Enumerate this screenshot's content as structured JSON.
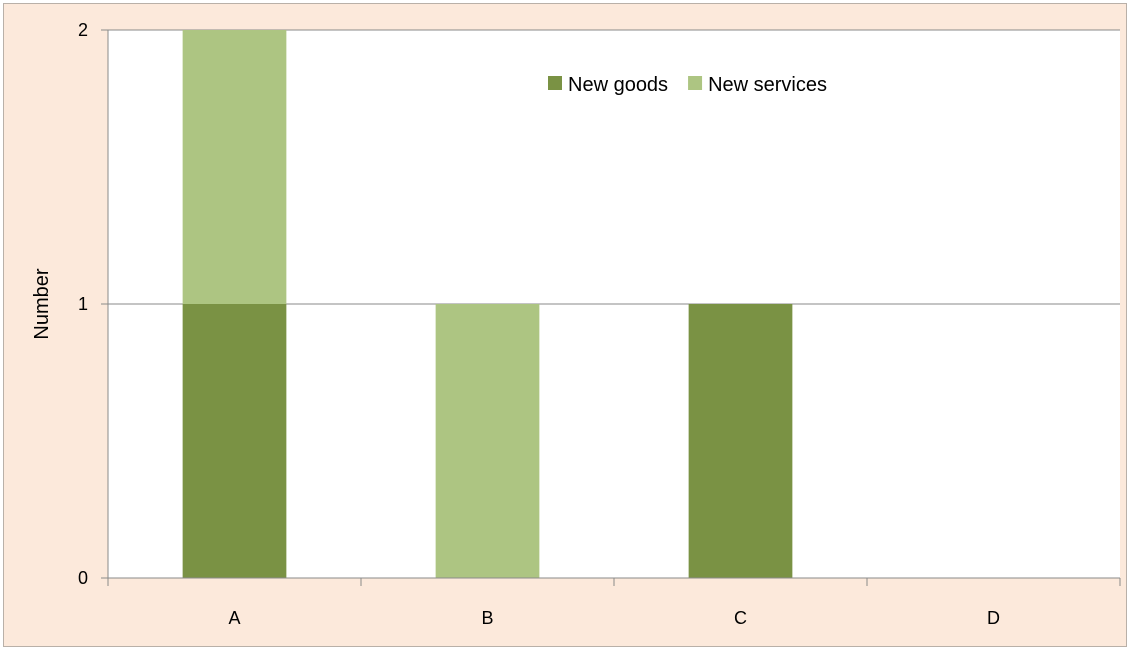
{
  "chart_data": {
    "type": "bar",
    "stacked": true,
    "categories": [
      "A",
      "B",
      "C",
      "D"
    ],
    "series": [
      {
        "name": "New goods",
        "values": [
          1,
          0,
          1,
          0
        ],
        "color": "#7a9244"
      },
      {
        "name": "New services",
        "values": [
          1,
          1,
          0,
          0
        ],
        "color": "#adc582"
      }
    ],
    "title": "",
    "xlabel": "",
    "ylabel": "Number",
    "ylim": [
      0,
      2
    ],
    "yticks": [
      "0",
      "1",
      "2"
    ],
    "grid": true,
    "legend_position": "top-right",
    "colors": {
      "plot_background": "#ffffff",
      "chart_background": "#fce9db",
      "gridline": "#8a8a8a",
      "axis": "#8a8a8a"
    }
  }
}
